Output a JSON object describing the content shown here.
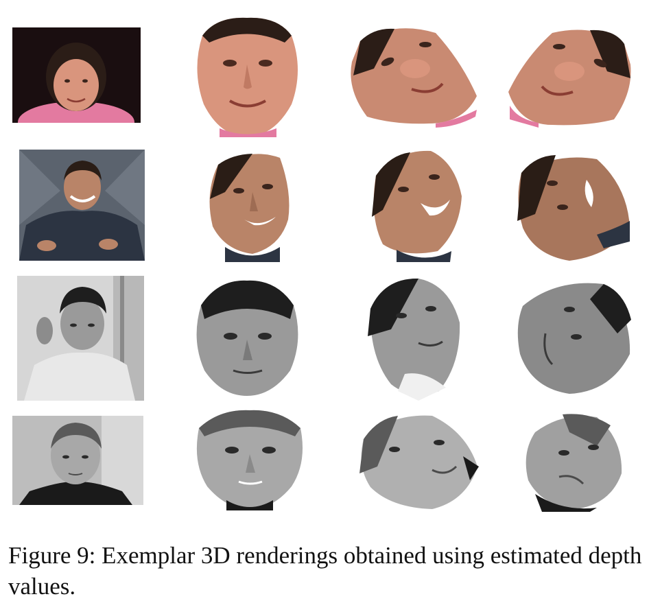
{
  "figure": {
    "caption": "Figure 9: Exemplar 3D renderings obtained using estimated depth values.",
    "rows": [
      {
        "subject": "woman",
        "palette": {
          "skin": "#d9957d",
          "skin_dark": "#a8604a",
          "hair": "#2b1d17",
          "bg": "#1a0e10",
          "cloth": "#e37aa0"
        }
      },
      {
        "subject": "man",
        "palette": {
          "skin": "#b98468",
          "skin_dark": "#6e4432",
          "hair": "#2a1d16",
          "bg": "#5b636e",
          "cloth": "#2c3442"
        }
      },
      {
        "subject": "boy-grayscale",
        "palette": {
          "skin": "#9a9a9a",
          "skin_dark": "#3a3a3a",
          "hair": "#1e1e1e",
          "bg": "#d6d6d6",
          "cloth": "#e8e8e8"
        }
      },
      {
        "subject": "child-grayscale",
        "palette": {
          "skin": "#a8a8a8",
          "skin_dark": "#4a4a4a",
          "hair": "#5a5a5a",
          "bg": "#bdbdbd",
          "cloth": "#1a1a1a"
        }
      }
    ]
  }
}
